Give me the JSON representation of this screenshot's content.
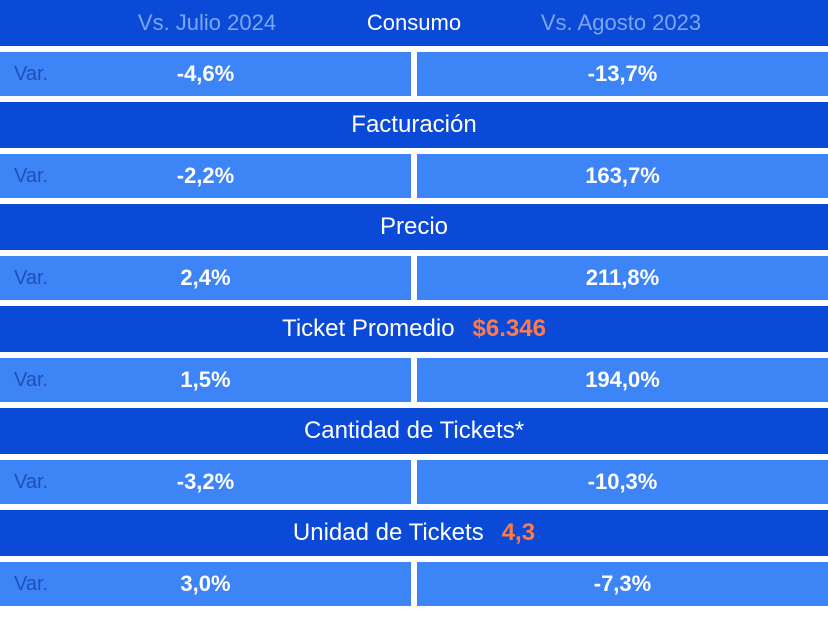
{
  "colors": {
    "dark_blue": "#0b4ad6",
    "light_blue": "#3d84f7",
    "white": "#ffffff",
    "faded_label": "#7aa7ef",
    "accent": "#ff7a4a",
    "var_label": "#1f4fb8"
  },
  "header": {
    "left_label": "Vs. Julio 2024",
    "right_label": "Vs. Agosto 2023"
  },
  "sections": [
    {
      "title": "Consumo",
      "extra_value": null,
      "var_label": "Var.",
      "left_value": "-4,6%",
      "right_value": "-13,7%"
    },
    {
      "title": "Facturación",
      "extra_value": null,
      "var_label": "Var.",
      "left_value": "-2,2%",
      "right_value": "163,7%"
    },
    {
      "title": "Precio",
      "extra_value": null,
      "var_label": "Var.",
      "left_value": "2,4%",
      "right_value": "211,8%"
    },
    {
      "title": "Ticket Promedio",
      "extra_value": "$6.346",
      "var_label": "Var.",
      "left_value": "1,5%",
      "right_value": "194,0%"
    },
    {
      "title": "Cantidad de Tickets*",
      "extra_value": null,
      "var_label": "Var.",
      "left_value": "-3,2%",
      "right_value": "-10,3%"
    },
    {
      "title": "Unidad de Tickets",
      "extra_value": "4,3",
      "var_label": "Var.",
      "left_value": "3,0%",
      "right_value": "-7,3%"
    }
  ]
}
